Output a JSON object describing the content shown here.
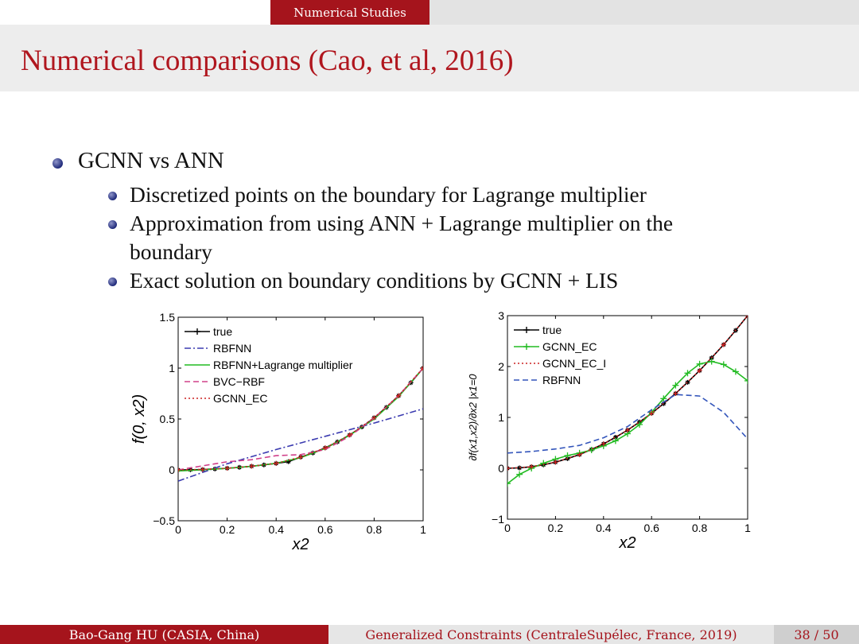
{
  "header": {
    "section": "Numerical Studies",
    "title": "Numerical comparisons (Cao, et al, 2016)"
  },
  "bullets": {
    "main": "GCNN vs ANN",
    "sub": [
      "Discretized points on the boundary for Lagrange multiplier",
      "Approximation from using ANN + Lagrange multiplier on the",
      "boundary",
      "Exact solution on boundary conditions by GCNN + LIS"
    ]
  },
  "footer": {
    "author": "Bao-Gang HU (CASIA, China)",
    "talk": "Generalized Constraints (CentraleSupélec, France, 2019)",
    "pages": "38 / 50"
  },
  "colors": {
    "accent": "#a5141c",
    "bullet": "#1f2a7a"
  },
  "chart_data": [
    {
      "type": "line",
      "xlabel": "x2",
      "ylabel": "f(0, x2)",
      "xlim": [
        0,
        1
      ],
      "ylim": [
        -0.5,
        1.5
      ],
      "xticks": [
        "0",
        "0.2",
        "0.4",
        "0.6",
        "0.8",
        "1"
      ],
      "yticks": [
        "−0.5",
        "0",
        "0.5",
        "1",
        "1.5"
      ],
      "legend_position": "top-left",
      "series": [
        {
          "name": "true",
          "color": "#000000",
          "style": "solid-star",
          "x": [
            0,
            0.05,
            0.1,
            0.15,
            0.2,
            0.25,
            0.3,
            0.35,
            0.4,
            0.45,
            0.5,
            0.55,
            0.6,
            0.65,
            0.7,
            0.75,
            0.8,
            0.85,
            0.9,
            0.95,
            1.0
          ],
          "y": [
            0,
            0.001,
            0.004,
            0.009,
            0.016,
            0.025,
            0.036,
            0.049,
            0.064,
            0.081,
            0.125,
            0.166,
            0.216,
            0.275,
            0.343,
            0.422,
            0.512,
            0.614,
            0.729,
            0.857,
            1.0
          ]
        },
        {
          "name": "RBFNN",
          "color": "#3b3bb0",
          "style": "dashdot",
          "x": [
            0,
            0.2,
            0.4,
            0.6,
            0.8,
            1.0
          ],
          "y": [
            -0.11,
            0.06,
            0.2,
            0.33,
            0.46,
            0.6
          ]
        },
        {
          "name": "RBFNN+Lagrange multiplier",
          "color": "#22bb22",
          "style": "solid",
          "x": [
            0,
            0.1,
            0.2,
            0.3,
            0.4,
            0.5,
            0.6,
            0.7,
            0.8,
            0.9,
            1.0
          ],
          "y": [
            -0.01,
            0.0,
            0.015,
            0.035,
            0.065,
            0.12,
            0.21,
            0.34,
            0.5,
            0.72,
            1.0
          ]
        },
        {
          "name": "BVC−RBF",
          "color": "#d0408a",
          "style": "dashed",
          "x": [
            0,
            0.1,
            0.2,
            0.3,
            0.4,
            0.5,
            0.6,
            0.7,
            0.8,
            0.9,
            1.0
          ],
          "y": [
            0,
            0.04,
            0.08,
            0.1,
            0.14,
            0.15,
            0.2,
            0.33,
            0.51,
            0.73,
            1.0
          ]
        },
        {
          "name": "GCNN_EC",
          "color": "#cc2222",
          "style": "dotted",
          "x": [
            0,
            0.1,
            0.2,
            0.3,
            0.4,
            0.5,
            0.6,
            0.7,
            0.8,
            0.9,
            1.0
          ],
          "y": [
            0,
            0.004,
            0.016,
            0.036,
            0.064,
            0.125,
            0.216,
            0.343,
            0.512,
            0.729,
            1.0
          ]
        }
      ]
    },
    {
      "type": "line",
      "xlabel": "x2",
      "ylabel": "∂f(x1,x2)/∂x2 |x1=0",
      "xlim": [
        0,
        1
      ],
      "ylim": [
        -1,
        3
      ],
      "xticks": [
        "0",
        "0.2",
        "0.4",
        "0.6",
        "0.8",
        "1"
      ],
      "yticks": [
        "−1",
        "0",
        "1",
        "2",
        "3"
      ],
      "legend_position": "top-left",
      "series": [
        {
          "name": "true",
          "color": "#000000",
          "style": "solid-star",
          "x": [
            0,
            0.05,
            0.1,
            0.15,
            0.2,
            0.25,
            0.3,
            0.35,
            0.4,
            0.45,
            0.5,
            0.55,
            0.6,
            0.65,
            0.7,
            0.75,
            0.8,
            0.85,
            0.9,
            0.95,
            1.0
          ],
          "y": [
            0,
            0.008,
            0.03,
            0.068,
            0.12,
            0.19,
            0.27,
            0.37,
            0.48,
            0.61,
            0.75,
            0.91,
            1.08,
            1.27,
            1.47,
            1.69,
            1.92,
            2.17,
            2.43,
            2.71,
            3.0
          ]
        },
        {
          "name": "GCNN_EC",
          "color": "#22bb22",
          "style": "solid-plus",
          "x": [
            0,
            0.05,
            0.1,
            0.15,
            0.2,
            0.25,
            0.3,
            0.35,
            0.4,
            0.45,
            0.5,
            0.55,
            0.6,
            0.65,
            0.7,
            0.75,
            0.8,
            0.85,
            0.9,
            0.95,
            1.0
          ],
          "y": [
            -0.3,
            -0.12,
            0.0,
            0.1,
            0.18,
            0.25,
            0.3,
            0.36,
            0.44,
            0.54,
            0.68,
            0.86,
            1.1,
            1.37,
            1.63,
            1.87,
            2.05,
            2.1,
            2.04,
            1.9,
            1.72
          ]
        },
        {
          "name": "GCNN_EC_I",
          "color": "#cc2222",
          "style": "dotted",
          "x": [
            0,
            0.1,
            0.2,
            0.3,
            0.4,
            0.5,
            0.6,
            0.7,
            0.8,
            0.9,
            1.0
          ],
          "y": [
            0,
            0.03,
            0.12,
            0.27,
            0.48,
            0.75,
            1.08,
            1.47,
            1.92,
            2.43,
            3.0
          ]
        },
        {
          "name": "RBFNN",
          "color": "#3355bb",
          "style": "dashed",
          "x": [
            0,
            0.1,
            0.2,
            0.3,
            0.4,
            0.5,
            0.6,
            0.7,
            0.8,
            0.9,
            1.0
          ],
          "y": [
            0.3,
            0.33,
            0.38,
            0.45,
            0.6,
            0.82,
            1.15,
            1.45,
            1.42,
            1.1,
            0.58
          ]
        }
      ]
    }
  ]
}
